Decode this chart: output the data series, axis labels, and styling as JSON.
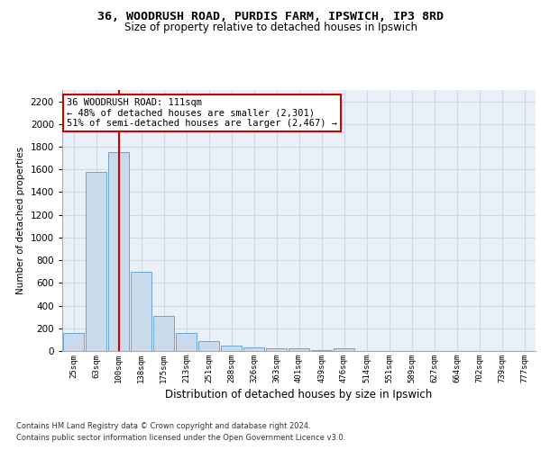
{
  "title_line1": "36, WOODRUSH ROAD, PURDIS FARM, IPSWICH, IP3 8RD",
  "title_line2": "Size of property relative to detached houses in Ipswich",
  "xlabel": "Distribution of detached houses by size in Ipswich",
  "ylabel": "Number of detached properties",
  "categories": [
    "25sqm",
    "63sqm",
    "100sqm",
    "138sqm",
    "175sqm",
    "213sqm",
    "251sqm",
    "288sqm",
    "326sqm",
    "363sqm",
    "401sqm",
    "439sqm",
    "476sqm",
    "514sqm",
    "551sqm",
    "589sqm",
    "627sqm",
    "664sqm",
    "702sqm",
    "739sqm",
    "777sqm"
  ],
  "values": [
    160,
    1580,
    1750,
    700,
    310,
    155,
    85,
    50,
    30,
    22,
    20,
    5,
    20,
    0,
    0,
    0,
    0,
    0,
    0,
    0,
    0
  ],
  "bar_color": "#c9daea",
  "bar_edge_color": "#5b9bd5",
  "grid_color": "#d0d8e8",
  "background_color": "#eaf0f8",
  "annotation_box_text": "36 WOODRUSH ROAD: 111sqm\n← 48% of detached houses are smaller (2,301)\n51% of semi-detached houses are larger (2,467) →",
  "annotation_box_color": "#ffffff",
  "annotation_box_edge": "#cc0000",
  "vline_color": "#cc0000",
  "vline_x": 2.5,
  "ylim": [
    0,
    2300
  ],
  "yticks": [
    0,
    200,
    400,
    600,
    800,
    1000,
    1200,
    1400,
    1600,
    1800,
    2000,
    2200
  ],
  "footer_line1": "Contains HM Land Registry data © Crown copyright and database right 2024.",
  "footer_line2": "Contains public sector information licensed under the Open Government Licence v3.0."
}
